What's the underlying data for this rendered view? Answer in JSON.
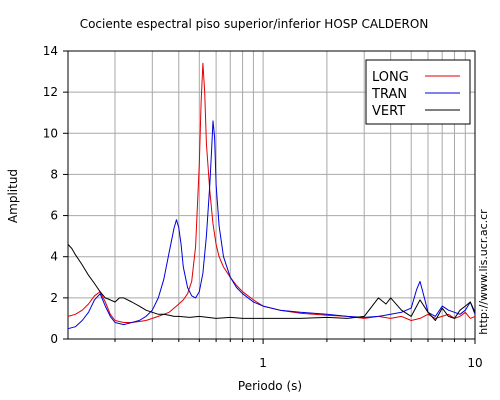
{
  "chart_data": {
    "type": "line",
    "title": "Cociente espectral piso superior/inferior  HOSP CALDERON",
    "xlabel": "Periodo (s)",
    "ylabel": "Amplitud",
    "xscale": "log",
    "xlim": [
      0.12,
      10
    ],
    "ylim": [
      0,
      14
    ],
    "x_ticks": [
      {
        "value": 1,
        "label": "1"
      },
      {
        "value": 10,
        "label": "10"
      }
    ],
    "y_ticks": [
      {
        "value": 0,
        "label": "0"
      },
      {
        "value": 2,
        "label": "2"
      },
      {
        "value": 4,
        "label": "4"
      },
      {
        "value": 6,
        "label": "6"
      },
      {
        "value": 8,
        "label": "8"
      },
      {
        "value": 10,
        "label": "10"
      },
      {
        "value": 12,
        "label": "12"
      },
      {
        "value": 14,
        "label": "14"
      }
    ],
    "grid": true,
    "legend_position": "top-right",
    "series": [
      {
        "name": "LONG",
        "color": "#e00000",
        "x": [
          0.12,
          0.13,
          0.14,
          0.15,
          0.16,
          0.17,
          0.18,
          0.19,
          0.2,
          0.22,
          0.24,
          0.26,
          0.28,
          0.3,
          0.32,
          0.34,
          0.36,
          0.38,
          0.4,
          0.42,
          0.44,
          0.46,
          0.48,
          0.5,
          0.51,
          0.52,
          0.53,
          0.54,
          0.56,
          0.58,
          0.6,
          0.62,
          0.65,
          0.7,
          0.75,
          0.8,
          0.9,
          1,
          1.2,
          1.5,
          2,
          2.5,
          3,
          3.5,
          4,
          4.5,
          5,
          5.5,
          6,
          6.5,
          7,
          7.5,
          8,
          8.5,
          9,
          9.5,
          10
        ],
        "y": [
          1.1,
          1.2,
          1.4,
          1.7,
          2.1,
          2.3,
          1.8,
          1.2,
          0.9,
          0.8,
          0.8,
          0.85,
          0.9,
          1.0,
          1.1,
          1.2,
          1.3,
          1.5,
          1.7,
          1.9,
          2.2,
          2.8,
          4.5,
          8.5,
          11.5,
          13.4,
          12.0,
          9.5,
          7.2,
          5.6,
          4.6,
          4.0,
          3.5,
          3.0,
          2.6,
          2.3,
          1.9,
          1.6,
          1.4,
          1.25,
          1.15,
          1.1,
          1.0,
          1.1,
          1.0,
          1.1,
          0.9,
          1.0,
          1.2,
          1.0,
          1.1,
          1.2,
          1.0,
          1.1,
          1.3,
          1.0,
          1.1
        ]
      },
      {
        "name": "TRAN",
        "color": "#0000e0",
        "x": [
          0.12,
          0.13,
          0.14,
          0.15,
          0.16,
          0.17,
          0.18,
          0.19,
          0.2,
          0.22,
          0.24,
          0.26,
          0.28,
          0.3,
          0.32,
          0.34,
          0.36,
          0.38,
          0.39,
          0.4,
          0.41,
          0.42,
          0.44,
          0.46,
          0.48,
          0.5,
          0.52,
          0.54,
          0.56,
          0.57,
          0.58,
          0.59,
          0.6,
          0.62,
          0.65,
          0.7,
          0.75,
          0.8,
          0.9,
          1,
          1.2,
          1.5,
          2,
          2.5,
          3,
          3.5,
          4,
          4.5,
          5,
          5.3,
          5.5,
          5.8,
          6,
          6.5,
          7,
          7.5,
          8,
          8.5,
          9,
          9.5,
          10
        ],
        "y": [
          0.5,
          0.6,
          0.9,
          1.3,
          1.9,
          2.2,
          1.6,
          1.1,
          0.8,
          0.7,
          0.8,
          0.9,
          1.1,
          1.4,
          2.0,
          2.9,
          4.2,
          5.4,
          5.8,
          5.4,
          4.6,
          3.5,
          2.5,
          2.1,
          2.0,
          2.3,
          3.2,
          5.0,
          7.5,
          9.0,
          10.6,
          9.8,
          7.5,
          5.5,
          4.0,
          3.0,
          2.5,
          2.2,
          1.8,
          1.6,
          1.4,
          1.3,
          1.2,
          1.1,
          1.05,
          1.1,
          1.2,
          1.3,
          1.5,
          2.4,
          2.8,
          1.9,
          1.3,
          1.1,
          1.6,
          1.4,
          1.3,
          1.2,
          1.4,
          1.8,
          1.2
        ]
      },
      {
        "name": "VERT",
        "color": "#000000",
        "x": [
          0.12,
          0.125,
          0.13,
          0.14,
          0.15,
          0.16,
          0.17,
          0.18,
          0.19,
          0.2,
          0.21,
          0.22,
          0.24,
          0.26,
          0.28,
          0.3,
          0.32,
          0.34,
          0.36,
          0.38,
          0.4,
          0.45,
          0.5,
          0.6,
          0.7,
          0.8,
          1,
          1.2,
          1.5,
          2,
          2.5,
          3,
          3.5,
          3.8,
          4,
          4.5,
          5,
          5.5,
          6,
          6.5,
          7,
          7.5,
          8,
          8.5,
          9,
          9.5,
          10
        ],
        "y": [
          4.6,
          4.4,
          4.1,
          3.6,
          3.1,
          2.7,
          2.3,
          2.0,
          1.9,
          1.8,
          2.0,
          2.0,
          1.8,
          1.6,
          1.4,
          1.3,
          1.2,
          1.2,
          1.15,
          1.1,
          1.1,
          1.05,
          1.1,
          1.0,
          1.05,
          1.0,
          1.0,
          1.0,
          1.0,
          1.05,
          1.0,
          1.1,
          2.0,
          1.7,
          2.0,
          1.4,
          1.1,
          1.9,
          1.3,
          0.9,
          1.5,
          1.1,
          1.0,
          1.4,
          1.6,
          1.8,
          1.3
        ]
      }
    ],
    "annotation": "http://www.lis.ucr.ac.cr"
  }
}
